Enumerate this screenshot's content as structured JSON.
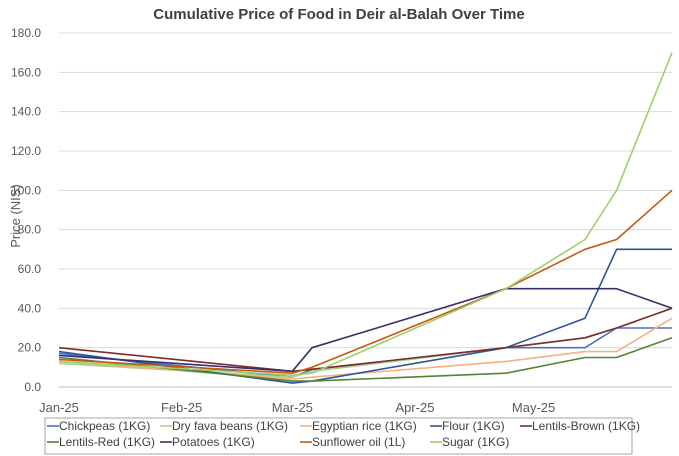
{
  "chart_data": {
    "type": "line",
    "title": "Cumulative Price of Food in Deir al-Balah Over Time",
    "xlabel": "",
    "ylabel": "Price (NIS)",
    "ylim": [
      0,
      180
    ],
    "y_ticks": [
      "0.0",
      "20.0",
      "40.0",
      "60.0",
      "80.0",
      "100.0",
      "120.0",
      "140.0",
      "160.0",
      "180.0"
    ],
    "x_ticks": [
      "Jan-25",
      "Feb-25",
      "Mar-25",
      "Apr-25",
      "May-25"
    ],
    "x_dates": [
      "2025-01-01",
      "2025-02-01",
      "2025-03-01",
      "2025-04-01",
      "2025-05-01"
    ],
    "grid": "horizontal",
    "legend": "bottom",
    "series": [
      {
        "name": "Chickpeas (1KG)",
        "color": "#4472c4",
        "x": [
          "2025-01-01",
          "2025-03-01",
          "2025-03-06",
          "2025-04-24",
          "2025-05-14",
          "2025-05-22",
          "2025-06-05"
        ],
        "y": [
          17,
          5,
          9,
          20,
          20,
          30,
          30
        ]
      },
      {
        "name": "Dry fava beans (1KG)",
        "color": "#a9d18e",
        "x": [
          "2025-01-01",
          "2025-03-01",
          "2025-03-06",
          "2025-04-24",
          "2025-05-14",
          "2025-05-22",
          "2025-06-05"
        ],
        "y": [
          12,
          5,
          8,
          20,
          25,
          30,
          40
        ]
      },
      {
        "name": "Egyptian rice (1KG)",
        "color": "#f4b183",
        "x": [
          "2025-01-01",
          "2025-03-01",
          "2025-03-06",
          "2025-04-24",
          "2025-05-14",
          "2025-05-22",
          "2025-06-05"
        ],
        "y": [
          13,
          4,
          5,
          13,
          18,
          18,
          35
        ]
      },
      {
        "name": "Flour (1KG)",
        "color": "#2e5597",
        "x": [
          "2025-01-01",
          "2025-03-01",
          "2025-03-06",
          "2025-04-24",
          "2025-05-14",
          "2025-05-22",
          "2025-06-05"
        ],
        "y": [
          18,
          2,
          3,
          20,
          35,
          70,
          70
        ]
      },
      {
        "name": "Lentils-Brown (1KG)",
        "color": "#7b2c2c",
        "x": [
          "2025-01-01",
          "2025-03-01",
          "2025-03-06",
          "2025-04-24",
          "2025-05-14",
          "2025-05-22",
          "2025-06-05"
        ],
        "y": [
          20,
          8,
          9,
          20,
          25,
          30,
          40
        ]
      },
      {
        "name": "Lentils-Red (1KG)",
        "color": "#548235",
        "x": [
          "2025-01-01",
          "2025-03-01",
          "2025-03-06",
          "2025-04-24",
          "2025-05-14",
          "2025-05-22",
          "2025-06-05"
        ],
        "y": [
          15,
          3,
          3,
          7,
          15,
          15,
          25
        ]
      },
      {
        "name": "Potatoes (1KG)",
        "color": "#3b2e6b",
        "x": [
          "2025-01-01",
          "2025-03-01",
          "2025-03-06",
          "2025-04-24",
          "2025-05-14",
          "2025-05-22",
          "2025-06-05"
        ],
        "y": [
          16,
          8,
          20,
          50,
          50,
          50,
          40
        ]
      },
      {
        "name": "Sunflower oil (1L)",
        "color": "#c55a11",
        "x": [
          "2025-01-01",
          "2025-03-01",
          "2025-03-06",
          "2025-04-24",
          "2025-05-14",
          "2025-05-22",
          "2025-06-05"
        ],
        "y": [
          14,
          7,
          10,
          50,
          70,
          75,
          100
        ]
      },
      {
        "name": "Sugar (1KG)",
        "color": "#9fcf6a",
        "x": [
          "2025-01-01",
          "2025-03-01",
          "2025-03-06",
          "2025-04-24",
          "2025-05-14",
          "2025-05-22",
          "2025-06-05"
        ],
        "y": [
          13,
          6,
          7,
          50,
          75,
          100,
          170
        ]
      }
    ]
  }
}
